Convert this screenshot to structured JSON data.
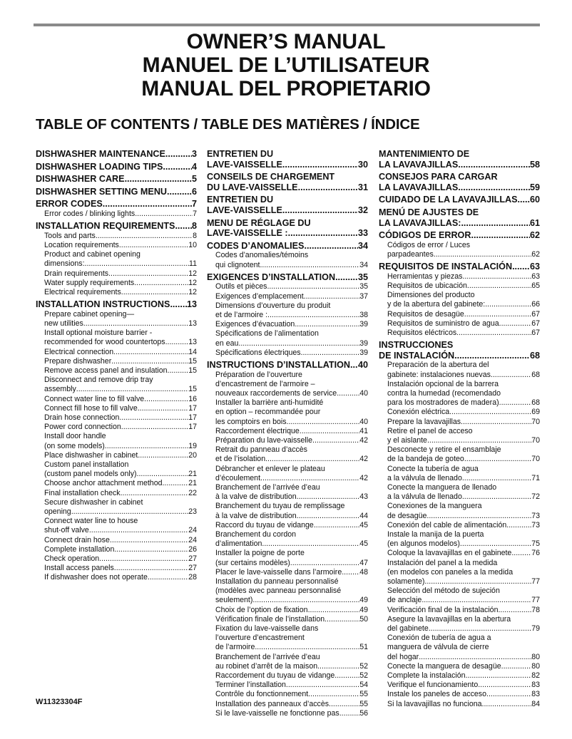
{
  "titles": [
    "OWNER’S MANUAL",
    "MANUEL DE L’UTILISATEUR",
    "MANUAL DEL PROPIETARIO"
  ],
  "toc_heading": "TABLE OF CONTENTS / TABLE DES MATIÈRES / ÍNDICE",
  "doc_number": "W11323304F",
  "columns": [
    [
      {
        "level": 1,
        "lines": [
          "DISHWASHER MAINTENANCE"
        ],
        "page": "3"
      },
      {
        "level": 1,
        "lines": [
          "DISHWASHER LOADING TIPS"
        ],
        "page": "4"
      },
      {
        "level": 1,
        "lines": [
          "DISHWASHER CARE"
        ],
        "page": "5"
      },
      {
        "level": 1,
        "lines": [
          "DISHWASHER SETTING MENU"
        ],
        "page": "6"
      },
      {
        "level": 1,
        "lines": [
          "ERROR CODES"
        ],
        "page": "7"
      },
      {
        "level": 2,
        "lines": [
          "Error codes / blinking lights"
        ],
        "page": "7"
      },
      {
        "level": 1,
        "lines": [
          "INSTALLATION REQUIREMENTS"
        ],
        "page": "8"
      },
      {
        "level": 2,
        "lines": [
          "Tools and parts"
        ],
        "page": "8"
      },
      {
        "level": 2,
        "lines": [
          "Location requirements"
        ],
        "page": "10"
      },
      {
        "level": 2,
        "lines": [
          "Product and cabinet opening",
          "dimensions:"
        ],
        "page": "11"
      },
      {
        "level": 2,
        "lines": [
          "Drain requirements"
        ],
        "page": "12"
      },
      {
        "level": 2,
        "lines": [
          "Water supply requirements"
        ],
        "page": "12"
      },
      {
        "level": 2,
        "lines": [
          "Electrical requirements"
        ],
        "page": "12"
      },
      {
        "level": 1,
        "lines": [
          "INSTALLATION INSTRUCTIONS"
        ],
        "page": "13"
      },
      {
        "level": 2,
        "lines": [
          "Prepare cabinet opening—",
          "new utilities"
        ],
        "page": "13"
      },
      {
        "level": 2,
        "lines": [
          "Install optional moisture barrier -",
          "recommended for wood countertops"
        ],
        "page": "13"
      },
      {
        "level": 2,
        "lines": [
          "Electrical connection"
        ],
        "page": "14"
      },
      {
        "level": 2,
        "lines": [
          "Prepare dishwasher"
        ],
        "page": "15"
      },
      {
        "level": 2,
        "lines": [
          "Remove access panel and insulation"
        ],
        "page": "15"
      },
      {
        "level": 2,
        "lines": [
          "Disconnect and remove drip tray",
          "assembly"
        ],
        "page": "15"
      },
      {
        "level": 2,
        "lines": [
          "Connect water line to fill valve"
        ],
        "page": "16"
      },
      {
        "level": 2,
        "lines": [
          "Connect fill hose to fill valve"
        ],
        "page": "17"
      },
      {
        "level": 2,
        "lines": [
          "Drain hose connection"
        ],
        "page": "17"
      },
      {
        "level": 2,
        "lines": [
          "Power cord connection"
        ],
        "page": "17"
      },
      {
        "level": 2,
        "lines": [
          "Install door handle",
          "(on some models)"
        ],
        "page": "19"
      },
      {
        "level": 2,
        "lines": [
          "Place dishwasher in cabinet"
        ],
        "page": "20"
      },
      {
        "level": 2,
        "lines": [
          "Custom panel installation",
          "(custom panel models only)"
        ],
        "page": "21"
      },
      {
        "level": 2,
        "lines": [
          "Choose anchor attachment method"
        ],
        "page": "21"
      },
      {
        "level": 2,
        "lines": [
          "Final installation check"
        ],
        "page": "22"
      },
      {
        "level": 2,
        "lines": [
          "Secure dishwasher in cabinet",
          "opening"
        ],
        "page": "23"
      },
      {
        "level": 2,
        "lines": [
          "Connect water line to house",
          "shut-off valve"
        ],
        "page": "24"
      },
      {
        "level": 2,
        "lines": [
          "Connect drain hose"
        ],
        "page": "24"
      },
      {
        "level": 2,
        "lines": [
          "Complete installation"
        ],
        "page": "26"
      },
      {
        "level": 2,
        "lines": [
          "Check operation"
        ],
        "page": "27"
      },
      {
        "level": 2,
        "lines": [
          "Install access panels"
        ],
        "page": "27"
      },
      {
        "level": 2,
        "lines": [
          "If dishwasher does not operate"
        ],
        "page": "28"
      }
    ],
    [
      {
        "level": 1,
        "lines": [
          "ENTRETIEN DU",
          "LAVE-VAISSELLE"
        ],
        "page": "30"
      },
      {
        "level": 1,
        "lines": [
          "CONSEILS DE CHARGEMENT",
          "DU LAVE-VAISSELLE"
        ],
        "page": "31"
      },
      {
        "level": 1,
        "lines": [
          "ENTRETIEN DU",
          "LAVE-VAISSELLE"
        ],
        "page": "32"
      },
      {
        "level": 1,
        "lines": [
          "MENU DE RÉGLAGE DU",
          "LAVE-VAISSELLE :"
        ],
        "page": "33"
      },
      {
        "level": 1,
        "lines": [
          "CODES D’ANOMALIES"
        ],
        "page": "34"
      },
      {
        "level": 2,
        "lines": [
          "Codes d’anomalies/témoins",
          "qui clignotent"
        ],
        "page": "34"
      },
      {
        "level": 1,
        "lines": [
          "EXIGENCES D’INSTALLATION"
        ],
        "page": "35"
      },
      {
        "level": 2,
        "lines": [
          "Outils et pièces"
        ],
        "page": "35"
      },
      {
        "level": 2,
        "lines": [
          "Exigences d’emplacement"
        ],
        "page": "37"
      },
      {
        "level": 2,
        "lines": [
          "Dimensions d’ouverture du produit",
          "et de l’armoire :"
        ],
        "page": "38"
      },
      {
        "level": 2,
        "lines": [
          "Exigences d’évacuation"
        ],
        "page": "39"
      },
      {
        "level": 2,
        "lines": [
          "Spécifications de l’alimentation",
          "en eau"
        ],
        "page": "39"
      },
      {
        "level": 2,
        "lines": [
          "Spécifications électriques"
        ],
        "page": "39"
      },
      {
        "level": 1,
        "lines": [
          "INSTRUCTIONS D’INSTALLATION"
        ],
        "page": "40"
      },
      {
        "level": 2,
        "lines": [
          "Préparation de l’ouverture",
          "d’encastrement de l’armoire –",
          "nouveaux raccordements de service"
        ],
        "page": "40"
      },
      {
        "level": 2,
        "lines": [
          "Installer la barrière anti-humidité",
          "en option – recommandée pour",
          "les comptoirs en bois"
        ],
        "page": "40"
      },
      {
        "level": 2,
        "lines": [
          "Raccordement électrique"
        ],
        "page": "41"
      },
      {
        "level": 2,
        "lines": [
          "Préparation du lave-vaisselle"
        ],
        "page": "42"
      },
      {
        "level": 2,
        "lines": [
          "Retrait du panneau d’accès",
          "et de l’isolation"
        ],
        "page": "42"
      },
      {
        "level": 2,
        "lines": [
          "Débrancher et enlever le plateau",
          "d’écoulement"
        ],
        "page": "42"
      },
      {
        "level": 2,
        "lines": [
          "Branchement de l’arrivée d’eau",
          "à la valve de distribution"
        ],
        "page": "43"
      },
      {
        "level": 2,
        "lines": [
          "Branchement du tuyau de remplissage",
          "à la valve de distribution"
        ],
        "page": "44"
      },
      {
        "level": 2,
        "lines": [
          "Raccord du tuyau de vidange"
        ],
        "page": "45"
      },
      {
        "level": 2,
        "lines": [
          "Branchement du cordon",
          "d’alimentation"
        ],
        "page": "45"
      },
      {
        "level": 2,
        "lines": [
          "Installer la poigne de porte",
          "(sur certains modèles)"
        ],
        "page": "47"
      },
      {
        "level": 2,
        "lines": [
          "Placer le lave-vaisselle dans l’armoire"
        ],
        "page": "48"
      },
      {
        "level": 2,
        "lines": [
          "Installation du panneau personnalisé",
          "(modèles avec panneau personnalisé",
          "seulement)"
        ],
        "page": "49"
      },
      {
        "level": 2,
        "lines": [
          "Choix de l’option de fixation"
        ],
        "page": "49"
      },
      {
        "level": 2,
        "lines": [
          "Vérification finale de l’installation"
        ],
        "page": "50"
      },
      {
        "level": 2,
        "lines": [
          "Fixation du lave-vaisselle dans",
          "l’ouverture d’encastrement",
          "de l’armoire"
        ],
        "page": "51"
      },
      {
        "level": 2,
        "lines": [
          "Branchement de l’arrivée d’eau",
          "au robinet d’arrêt de la maison"
        ],
        "page": "52"
      },
      {
        "level": 2,
        "lines": [
          "Raccordement du tuyau de vidange"
        ],
        "page": "52"
      },
      {
        "level": 2,
        "lines": [
          "Terminer l’installation"
        ],
        "page": "54"
      },
      {
        "level": 2,
        "lines": [
          "Contrôle du fonctionnement"
        ],
        "page": "55"
      },
      {
        "level": 2,
        "lines": [
          "Installation des panneaux d’accès"
        ],
        "page": "55"
      },
      {
        "level": 2,
        "lines": [
          "Si le lave-vaisselle ne fonctionne pas"
        ],
        "page": "56"
      }
    ],
    [
      {
        "level": 1,
        "lines": [
          "MANTENIMIENTO DE",
          "LA LAVAVAJILLAS"
        ],
        "page": "58"
      },
      {
        "level": 1,
        "lines": [
          "CONSEJOS PARA CARGAR",
          "LA LAVAVAJILLAS"
        ],
        "page": "59"
      },
      {
        "level": 1,
        "lines": [
          "CUIDADO DE LA LAVAVAJILLAS"
        ],
        "page": "60"
      },
      {
        "level": 1,
        "lines": [
          "MENÚ DE AJUSTES DE",
          "LA LAVAVAJILLAS:"
        ],
        "page": "61"
      },
      {
        "level": 1,
        "lines": [
          "CÓDIGOS DE ERROR"
        ],
        "page": "62"
      },
      {
        "level": 2,
        "lines": [
          "Códigos de error / Luces",
          "parpadeantes"
        ],
        "page": "62"
      },
      {
        "level": 1,
        "lines": [
          "REQUISITOS DE INSTALACIÓN"
        ],
        "page": "63"
      },
      {
        "level": 2,
        "lines": [
          "Herramientas y piezas"
        ],
        "page": "63"
      },
      {
        "level": 2,
        "lines": [
          "Requisitos de ubicación"
        ],
        "page": "65"
      },
      {
        "level": 2,
        "lines": [
          "Dimensiones del producto",
          "y de la abertura del gabinete:"
        ],
        "page": "66"
      },
      {
        "level": 2,
        "lines": [
          "Requisitos de desagüe"
        ],
        "page": "67"
      },
      {
        "level": 2,
        "lines": [
          "Requisitos de suministro de agua"
        ],
        "page": "67"
      },
      {
        "level": 2,
        "lines": [
          "Requisitos eléctricos"
        ],
        "page": "67"
      },
      {
        "level": 1,
        "lines": [
          "INSTRUCCIONES",
          "DE INSTALACIÓN"
        ],
        "page": "68"
      },
      {
        "level": 2,
        "lines": [
          "Preparación de la abertura del",
          "gabinete: instalaciones nuevas"
        ],
        "page": "68"
      },
      {
        "level": 2,
        "lines": [
          "Instalación opcional de la barrera",
          "contra la humedad (recomendado",
          "para los mostradores de madera)"
        ],
        "page": "68"
      },
      {
        "level": 2,
        "lines": [
          "Conexión eléctrica"
        ],
        "page": "69"
      },
      {
        "level": 2,
        "lines": [
          "Prepare la lavavajillas"
        ],
        "page": "70"
      },
      {
        "level": 2,
        "lines": [
          "Retire el panel de acceso",
          "y el aislante"
        ],
        "page": "70"
      },
      {
        "level": 2,
        "lines": [
          "Desconecte y retire el ensamblaje",
          "de la bandeja de goteo"
        ],
        "page": "70"
      },
      {
        "level": 2,
        "lines": [
          "Conecte la tubería de agua",
          "a la válvula de llenado"
        ],
        "page": "71"
      },
      {
        "level": 2,
        "lines": [
          "Conecte la manguera de llenado",
          "a la válvula de llenado"
        ],
        "page": "72"
      },
      {
        "level": 2,
        "lines": [
          "Conexiones de la manguera",
          "de desagüe"
        ],
        "page": "73"
      },
      {
        "level": 2,
        "lines": [
          "Conexión del cable de alimentación"
        ],
        "page": "73"
      },
      {
        "level": 2,
        "lines": [
          "Instale la manija de la puerta",
          "(en algunos modelos)"
        ],
        "page": "75"
      },
      {
        "level": 2,
        "lines": [
          "Coloque la lavavajillas en el gabinete"
        ],
        "page": "76"
      },
      {
        "level": 2,
        "lines": [
          "Instalación del panel a la medida",
          "(en modelos con paneles a la medida",
          "solamente)"
        ],
        "page": "77"
      },
      {
        "level": 2,
        "lines": [
          "Selección del método de sujeción",
          "de anclaje"
        ],
        "page": "77"
      },
      {
        "level": 2,
        "lines": [
          "Verificación final de la instalación"
        ],
        "page": "78"
      },
      {
        "level": 2,
        "lines": [
          "Asegure la lavavajillas en la abertura",
          "del gabinete"
        ],
        "page": "79"
      },
      {
        "level": 2,
        "lines": [
          "Conexión de tubería de agua a",
          "manguera de válvula de cierre",
          "del hogar"
        ],
        "page": "80"
      },
      {
        "level": 2,
        "lines": [
          "Conecte la manguera de desagüe"
        ],
        "page": "80"
      },
      {
        "level": 2,
        "lines": [
          "Complete la instalación"
        ],
        "page": "82"
      },
      {
        "level": 2,
        "lines": [
          "Verifique el funcionamiento"
        ],
        "page": "83"
      },
      {
        "level": 2,
        "lines": [
          "Instale los paneles de acceso"
        ],
        "page": "83"
      },
      {
        "level": 2,
        "lines": [
          "Si la lavavajillas no funciona"
        ],
        "page": "84"
      }
    ]
  ]
}
